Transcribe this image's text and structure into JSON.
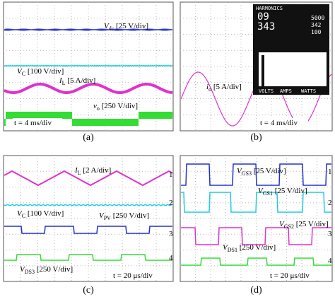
{
  "panels": [
    {
      "caption": "(a)",
      "time": "t = 4 ms/div",
      "labels": [
        {
          "symbol": "V",
          "sub": "dc",
          "scale": " [25 V/div]"
        },
        {
          "symbol": "V",
          "sub": "C",
          "scale": " [100 V/div]"
        },
        {
          "symbol": "I",
          "sub": "L",
          "scale": " [5 A/div]"
        },
        {
          "symbol": "v",
          "sub": "o",
          "scale": " [250 V/div]"
        }
      ]
    },
    {
      "caption": "(b)",
      "time": "t = 4 ms/div",
      "labels": [
        {
          "symbol": "i",
          "sub": "o",
          "scale": " [5 A/div]"
        }
      ],
      "inset": {
        "title": "HARMONICS",
        "readings": [
          "09",
          "343",
          "5000",
          "342",
          "100"
        ],
        "tabs": [
          "VOLTS",
          "AMPS",
          "WATTS"
        ]
      }
    },
    {
      "caption": "(c)",
      "time": "t = 20 μs/div",
      "channels": [
        "1",
        "2",
        "3",
        "4"
      ],
      "labels": [
        {
          "symbol": "I",
          "sub": "L",
          "scale": " [2 A/div]"
        },
        {
          "symbol": "V",
          "sub": "C",
          "scale": " [100 V/div]"
        },
        {
          "symbol": "V",
          "sub": "PV",
          "scale": " [250 V/div]"
        },
        {
          "symbol": "V",
          "sub": "DS3",
          "scale": " [250 V/div]"
        }
      ]
    },
    {
      "caption": "(d)",
      "time": "t = 20 μs/div",
      "channels": [
        "1",
        "2",
        "3",
        "4"
      ],
      "labels": [
        {
          "symbol": "V",
          "sub": "GS3",
          "scale": " [25 V/div]"
        },
        {
          "symbol": "V",
          "sub": "GS1",
          "scale": " [25 V/div]"
        },
        {
          "symbol": "V",
          "sub": "GS2",
          "scale": " [25 V/div]"
        },
        {
          "symbol": "V",
          "sub": "DS1",
          "scale": " [250 V/div]"
        }
      ]
    }
  ]
}
